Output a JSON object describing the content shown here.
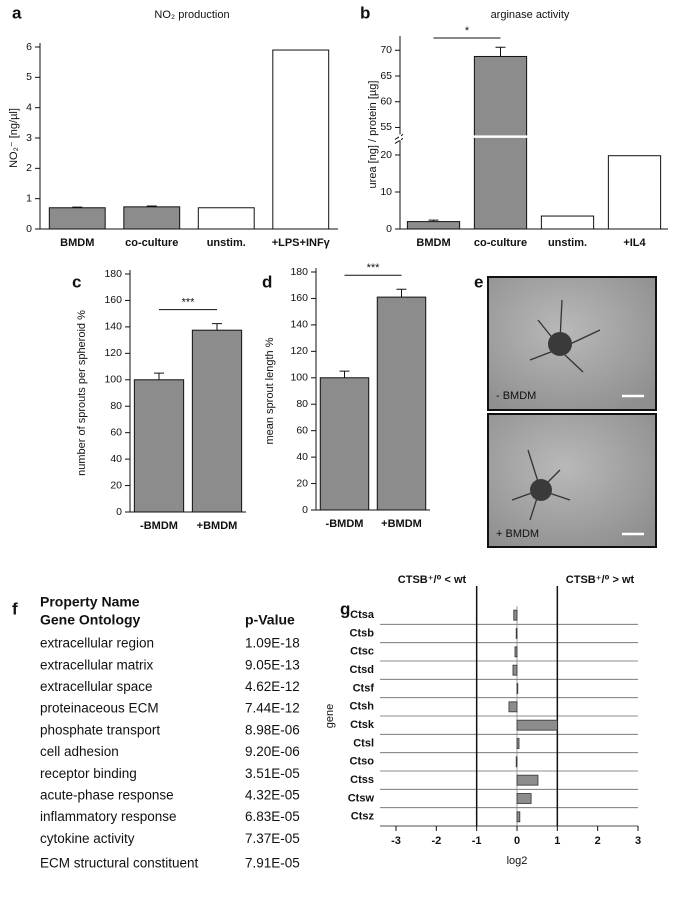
{
  "chart_data": [
    {
      "type": "bar",
      "panel": "a",
      "title": "NO₂ production",
      "y_label": "NO₂⁻ [ng/µl]",
      "categories": [
        "BMDM",
        "co-culture",
        "unstim.",
        "+LPS+INFγ"
      ],
      "values": [
        0.7,
        0.73,
        0.7,
        5.9
      ],
      "errors": [
        0.02,
        0.03,
        null,
        null
      ],
      "colors": [
        "#8c8c8c",
        "#8c8c8c",
        "#ffffff",
        "#ffffff"
      ],
      "ylim": [
        0,
        6
      ],
      "yticks": [
        0,
        1,
        2,
        3,
        4,
        5,
        6
      ]
    },
    {
      "type": "bar",
      "panel": "b",
      "title": "arginase activity",
      "y_label": "urea [ng] / protein [µg]",
      "categories": [
        "BMDM",
        "co-culture",
        "unstim.",
        "+IL4"
      ],
      "values": [
        2,
        68.8,
        3.5,
        19.8
      ],
      "errors": [
        0.4,
        1.8,
        null,
        null
      ],
      "colors": [
        "#8c8c8c",
        "#8c8c8c",
        "#ffffff",
        "#ffffff"
      ],
      "ylim": [
        0,
        72
      ],
      "ybreak": [
        24,
        54
      ],
      "yticks": [
        0,
        10,
        20,
        55,
        60,
        65,
        70
      ],
      "significance": "*"
    },
    {
      "type": "bar",
      "panel": "c",
      "y_label": "number of sprouts per spheroid %",
      "categories": [
        "-BMDM",
        "+BMDM"
      ],
      "values": [
        100,
        137.5
      ],
      "errors": [
        5,
        5
      ],
      "colors": [
        "#8c8c8c",
        "#8c8c8c"
      ],
      "ylim": [
        0,
        180
      ],
      "yticks": [
        0,
        20,
        40,
        60,
        80,
        100,
        120,
        140,
        160,
        180
      ],
      "significance": "***"
    },
    {
      "type": "bar",
      "panel": "d",
      "y_label": "mean sprout length %",
      "categories": [
        "-BMDM",
        "+BMDM"
      ],
      "values": [
        100,
        161
      ],
      "errors": [
        5,
        6
      ],
      "colors": [
        "#8c8c8c",
        "#8c8c8c"
      ],
      "ylim": [
        0,
        180
      ],
      "yticks": [
        0,
        20,
        40,
        60,
        80,
        100,
        120,
        140,
        160,
        180
      ],
      "significance": "***"
    },
    {
      "type": "hbar",
      "panel": "g",
      "x_label": "log2",
      "y_label": "gene",
      "annotations": [
        "CTSB⁺/⁰ < wt",
        "CTSB⁺/⁰ > wt"
      ],
      "categories": [
        "Ctsa",
        "Ctsb",
        "Ctsc",
        "Ctsd",
        "Ctsf",
        "Ctsh",
        "Ctsk",
        "Ctsl",
        "Ctso",
        "Ctss",
        "Ctsw",
        "Ctsz"
      ],
      "values": [
        -0.08,
        -0.02,
        -0.05,
        -0.1,
        0.02,
        -0.2,
        1.0,
        0.05,
        -0.02,
        0.52,
        0.35,
        0.07
      ],
      "color": "#8c8c8c",
      "reflines": [
        -1,
        1
      ],
      "xlim": [
        -3,
        3
      ],
      "xticks": [
        -3,
        -2,
        -1,
        0,
        1,
        2,
        3
      ]
    }
  ],
  "images": {
    "panel": "e",
    "labels": [
      "- BMDM",
      "+ BMDM"
    ]
  },
  "table": {
    "panel": "f",
    "header": {
      "name_lines": [
        "Property Name",
        "Gene Ontology"
      ],
      "value": "p-Value"
    },
    "rows": [
      [
        "extracellular region",
        "1.09E-18"
      ],
      [
        "extracellular matrix",
        "9.05E-13"
      ],
      [
        "extracellular space",
        "4.62E-12"
      ],
      [
        "proteinaceous ECM",
        "7.44E-12"
      ],
      [
        "phosphate transport",
        "8.98E-06"
      ],
      [
        "cell adhesion",
        "9.20E-06"
      ],
      [
        "receptor binding",
        "3.51E-05"
      ],
      [
        "acute-phase response",
        "4.32E-05"
      ],
      [
        "inflammatory response",
        "6.83E-05"
      ],
      [
        "cytokine activity",
        "7.37E-05"
      ],
      [
        "ECM structural constituent",
        "7.91E-05"
      ]
    ]
  }
}
